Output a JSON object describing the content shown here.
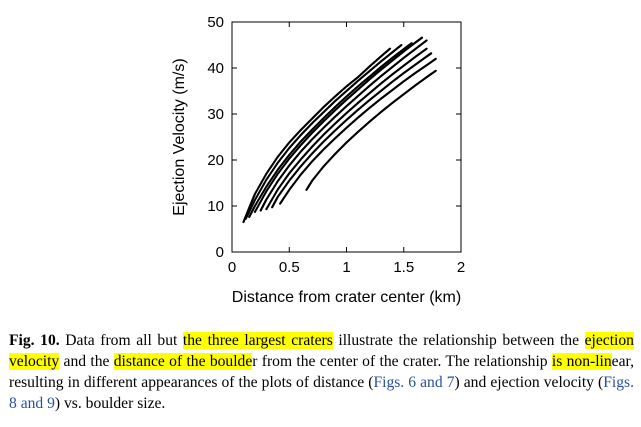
{
  "chart_data": {
    "type": "scatter",
    "xlabel": "Distance from crater center (km)",
    "ylabel": "Ejection Velocity (m/s)",
    "xlim": [
      0,
      2
    ],
    "ylim": [
      0,
      50
    ],
    "xticks": [
      0,
      0.5,
      1,
      1.5,
      2
    ],
    "xtick_labels": [
      "0",
      "0.5",
      "1",
      "1.5",
      "2"
    ],
    "yticks": [
      0,
      10,
      20,
      30,
      40,
      50
    ],
    "ytick_labels": [
      "0",
      "10",
      "20",
      "30",
      "40",
      "50"
    ],
    "grid": false,
    "legend": "none",
    "marker_color": "#000000",
    "series": [
      {
        "x": [
          0.1,
          0.15,
          0.2,
          0.3,
          0.4,
          0.5,
          0.6,
          0.7,
          0.8,
          0.9,
          1.0,
          1.1,
          1.2,
          1.3,
          1.38
        ],
        "y": [
          6.5,
          9.6,
          12.6,
          17.0,
          20.7,
          23.8,
          26.5,
          29.0,
          31.5,
          33.8,
          36.0,
          38.0,
          40.3,
          42.5,
          44.2
        ]
      },
      {
        "x": [
          0.12,
          0.2,
          0.3,
          0.4,
          0.5,
          0.6,
          0.7,
          0.8,
          0.9,
          1.0,
          1.1,
          1.2,
          1.3,
          1.4,
          1.48
        ],
        "y": [
          7.2,
          11.3,
          15.7,
          19.4,
          22.6,
          25.4,
          28.0,
          30.4,
          32.8,
          35.0,
          37.2,
          39.3,
          41.4,
          43.4,
          45.0
        ]
      },
      {
        "x": [
          0.15,
          0.2,
          0.3,
          0.4,
          0.5,
          0.6,
          0.7,
          0.8,
          0.9,
          1.0,
          1.1,
          1.2,
          1.3,
          1.4,
          1.5,
          1.57
        ],
        "y": [
          7.6,
          10.0,
          14.2,
          17.9,
          21.1,
          24.0,
          26.6,
          29.1,
          31.5,
          33.8,
          36.0,
          38.1,
          40.2,
          42.2,
          44.1,
          45.4
        ]
      },
      {
        "x": [
          0.2,
          0.3,
          0.4,
          0.5,
          0.6,
          0.7,
          0.8,
          0.9,
          1.0,
          1.1,
          1.2,
          1.3,
          1.4,
          1.5,
          1.6,
          1.66
        ],
        "y": [
          8.7,
          13.2,
          17.0,
          20.3,
          23.2,
          25.9,
          28.4,
          30.8,
          33.1,
          35.3,
          37.5,
          39.6,
          41.6,
          43.6,
          45.5,
          46.6
        ]
      },
      {
        "x": [
          0.25,
          0.3,
          0.4,
          0.5,
          0.6,
          0.7,
          0.8,
          0.9,
          1.0,
          1.1,
          1.2,
          1.3,
          1.4,
          1.5,
          1.6,
          1.7
        ],
        "y": [
          9.0,
          11.4,
          15.4,
          18.8,
          21.8,
          24.5,
          27.0,
          29.4,
          31.7,
          33.9,
          36.1,
          38.2,
          40.2,
          42.2,
          44.1,
          46.0
        ]
      },
      {
        "x": [
          0.3,
          0.4,
          0.5,
          0.6,
          0.7,
          0.8,
          0.9,
          1.0,
          1.1,
          1.2,
          1.3,
          1.4,
          1.5,
          1.6,
          1.7
        ],
        "y": [
          9.3,
          13.6,
          17.1,
          20.1,
          22.9,
          25.5,
          27.9,
          30.2,
          32.4,
          34.5,
          36.6,
          38.6,
          40.5,
          42.4,
          44.2
        ]
      },
      {
        "x": [
          0.35,
          0.4,
          0.5,
          0.6,
          0.7,
          0.8,
          0.9,
          1.0,
          1.1,
          1.2,
          1.3,
          1.4,
          1.5,
          1.6,
          1.7,
          1.74
        ],
        "y": [
          9.7,
          12.0,
          15.5,
          18.6,
          21.4,
          24.0,
          26.4,
          28.7,
          30.9,
          33.0,
          35.0,
          37.0,
          38.9,
          40.7,
          42.5,
          43.2
        ]
      },
      {
        "x": [
          0.42,
          0.5,
          0.6,
          0.7,
          0.8,
          0.9,
          1.0,
          1.1,
          1.2,
          1.3,
          1.4,
          1.5,
          1.6,
          1.7,
          1.78
        ],
        "y": [
          10.5,
          13.5,
          16.8,
          19.7,
          22.3,
          24.7,
          27.0,
          29.2,
          31.3,
          33.3,
          35.2,
          37.1,
          38.9,
          40.6,
          42.0
        ]
      },
      {
        "x": [
          0.65,
          0.7,
          0.8,
          0.9,
          1.0,
          1.1,
          1.2,
          1.3,
          1.4,
          1.5,
          1.6,
          1.7,
          1.78
        ],
        "y": [
          13.5,
          15.5,
          18.6,
          21.3,
          23.8,
          26.1,
          28.3,
          30.4,
          32.4,
          34.3,
          36.2,
          38.0,
          39.4
        ]
      }
    ]
  },
  "caption": {
    "figure_label": "Fig. 10.",
    "seg1": " Data from all but ",
    "hl1": "the three largest craters",
    "seg2": " illustrate the relationship between the ",
    "hl2": "ejection velocity",
    "seg3": " and the ",
    "hl3": "distance of the boulde",
    "seg4": "r from the center of the crater. The relationship ",
    "hl4": "is non-lin",
    "seg5": "ear, resulting in different appearances of the plots of distance (",
    "ref1": "Figs. 6 and 7",
    "seg6": ") and ejection velocity (",
    "ref2": "Figs. 8 and 9",
    "seg7": ") vs. boulder size."
  },
  "colors": {
    "highlight": "#ffff00",
    "link": "#2a4f9e"
  }
}
